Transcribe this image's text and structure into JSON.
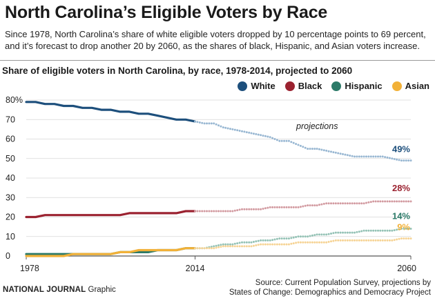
{
  "header": {
    "title": "North Carolina’s Eligible Voters by Race",
    "subtitle": "Since 1978, North Carolina’s share of white eligible voters dropped by 10 percentage points to 69 percent, and it’s forecast to drop another 20 by 2060, as the shares of black, Hispanic, and Asian voters increase."
  },
  "footer": {
    "brand": "NATIONAL JOURNAL",
    "brand_suffix": "Graphic",
    "source_line1": "Source: Current Population Survey, projections by",
    "source_line2": "States of Change: Demographics and Democracy Project"
  },
  "chart_data": {
    "type": "line",
    "title": "Share of eligible voters in North Carolina, by race, 1978-2014, projected to 2060",
    "xlim": [
      1978,
      2060
    ],
    "ylim": [
      0,
      80
    ],
    "x_ticks": [
      1978,
      2014,
      2060
    ],
    "y_ticks": [
      0,
      10,
      20,
      30,
      40,
      50,
      60,
      70,
      80
    ],
    "y_tick_labels": [
      "0",
      "10",
      "20",
      "30",
      "40",
      "50",
      "60",
      "70",
      "80%"
    ],
    "grid": "horizontal",
    "legend_position": "top-right",
    "projection_start": 2014,
    "annotation": "projections",
    "series": [
      {
        "name": "White",
        "color": "#1d4f7c",
        "projection_color": "#98b7d2",
        "end_label": "49%",
        "actual": [
          [
            1978,
            79
          ],
          [
            1980,
            79
          ],
          [
            1982,
            78
          ],
          [
            1984,
            78
          ],
          [
            1986,
            77
          ],
          [
            1988,
            77
          ],
          [
            1990,
            76
          ],
          [
            1992,
            76
          ],
          [
            1994,
            75
          ],
          [
            1996,
            75
          ],
          [
            1998,
            74
          ],
          [
            2000,
            74
          ],
          [
            2002,
            73
          ],
          [
            2004,
            73
          ],
          [
            2006,
            72
          ],
          [
            2008,
            71
          ],
          [
            2010,
            70
          ],
          [
            2012,
            70
          ],
          [
            2014,
            69
          ]
        ],
        "projected": [
          [
            2014,
            69
          ],
          [
            2016,
            68
          ],
          [
            2018,
            68
          ],
          [
            2020,
            66
          ],
          [
            2022,
            65
          ],
          [
            2024,
            64
          ],
          [
            2026,
            63
          ],
          [
            2028,
            62
          ],
          [
            2030,
            61
          ],
          [
            2032,
            59
          ],
          [
            2034,
            59
          ],
          [
            2036,
            57
          ],
          [
            2038,
            55
          ],
          [
            2040,
            55
          ],
          [
            2042,
            54
          ],
          [
            2044,
            53
          ],
          [
            2046,
            52
          ],
          [
            2048,
            51
          ],
          [
            2050,
            51
          ],
          [
            2052,
            51
          ],
          [
            2054,
            51
          ],
          [
            2056,
            50
          ],
          [
            2058,
            49
          ],
          [
            2060,
            49
          ]
        ]
      },
      {
        "name": "Black",
        "color": "#9b2230",
        "projection_color": "#d29aa0",
        "end_label": "28%",
        "actual": [
          [
            1978,
            20
          ],
          [
            1980,
            20
          ],
          [
            1982,
            21
          ],
          [
            1984,
            21
          ],
          [
            1986,
            21
          ],
          [
            1988,
            21
          ],
          [
            1990,
            21
          ],
          [
            1992,
            21
          ],
          [
            1994,
            21
          ],
          [
            1996,
            21
          ],
          [
            1998,
            21
          ],
          [
            2000,
            22
          ],
          [
            2002,
            22
          ],
          [
            2004,
            22
          ],
          [
            2006,
            22
          ],
          [
            2008,
            22
          ],
          [
            2010,
            22
          ],
          [
            2012,
            23
          ],
          [
            2014,
            23
          ]
        ],
        "projected": [
          [
            2014,
            23
          ],
          [
            2016,
            23
          ],
          [
            2018,
            23
          ],
          [
            2020,
            23
          ],
          [
            2022,
            23
          ],
          [
            2024,
            24
          ],
          [
            2026,
            24
          ],
          [
            2028,
            24
          ],
          [
            2030,
            25
          ],
          [
            2032,
            25
          ],
          [
            2034,
            25
          ],
          [
            2036,
            25
          ],
          [
            2038,
            26
          ],
          [
            2040,
            26
          ],
          [
            2042,
            27
          ],
          [
            2044,
            27
          ],
          [
            2046,
            27
          ],
          [
            2048,
            27
          ],
          [
            2050,
            27
          ],
          [
            2052,
            28
          ],
          [
            2054,
            28
          ],
          [
            2056,
            28
          ],
          [
            2058,
            28
          ],
          [
            2060,
            28
          ]
        ]
      },
      {
        "name": "Hispanic",
        "color": "#2c7a68",
        "projection_color": "#94c2b5",
        "end_label": "14%",
        "actual": [
          [
            1978,
            1
          ],
          [
            1980,
            1
          ],
          [
            1982,
            1
          ],
          [
            1984,
            1
          ],
          [
            1986,
            1
          ],
          [
            1988,
            1
          ],
          [
            1990,
            1
          ],
          [
            1992,
            1
          ],
          [
            1994,
            1
          ],
          [
            1996,
            1
          ],
          [
            1998,
            2
          ],
          [
            2000,
            2
          ],
          [
            2002,
            2
          ],
          [
            2004,
            2
          ],
          [
            2006,
            3
          ],
          [
            2008,
            3
          ],
          [
            2010,
            3
          ],
          [
            2012,
            4
          ],
          [
            2014,
            4
          ]
        ],
        "projected": [
          [
            2014,
            4
          ],
          [
            2016,
            4
          ],
          [
            2018,
            5
          ],
          [
            2020,
            6
          ],
          [
            2022,
            6
          ],
          [
            2024,
            7
          ],
          [
            2026,
            7
          ],
          [
            2028,
            8
          ],
          [
            2030,
            8
          ],
          [
            2032,
            9
          ],
          [
            2034,
            9
          ],
          [
            2036,
            10
          ],
          [
            2038,
            10
          ],
          [
            2040,
            11
          ],
          [
            2042,
            11
          ],
          [
            2044,
            12
          ],
          [
            2046,
            12
          ],
          [
            2048,
            12
          ],
          [
            2050,
            13
          ],
          [
            2052,
            13
          ],
          [
            2054,
            13
          ],
          [
            2056,
            13
          ],
          [
            2058,
            14
          ],
          [
            2060,
            14
          ]
        ]
      },
      {
        "name": "Asian",
        "color": "#f2b138",
        "projection_color": "#f6d394",
        "end_label": "9%",
        "actual": [
          [
            1978,
            0
          ],
          [
            1980,
            0
          ],
          [
            1982,
            0
          ],
          [
            1984,
            0
          ],
          [
            1986,
            0
          ],
          [
            1988,
            1
          ],
          [
            1990,
            1
          ],
          [
            1992,
            1
          ],
          [
            1994,
            1
          ],
          [
            1996,
            1
          ],
          [
            1998,
            2
          ],
          [
            2000,
            2
          ],
          [
            2002,
            3
          ],
          [
            2004,
            3
          ],
          [
            2006,
            3
          ],
          [
            2008,
            3
          ],
          [
            2010,
            3
          ],
          [
            2012,
            4
          ],
          [
            2014,
            4
          ]
        ],
        "projected": [
          [
            2014,
            4
          ],
          [
            2016,
            4
          ],
          [
            2018,
            4
          ],
          [
            2020,
            5
          ],
          [
            2022,
            5
          ],
          [
            2024,
            5
          ],
          [
            2026,
            5
          ],
          [
            2028,
            6
          ],
          [
            2030,
            6
          ],
          [
            2032,
            6
          ],
          [
            2034,
            6
          ],
          [
            2036,
            7
          ],
          [
            2038,
            7
          ],
          [
            2040,
            7
          ],
          [
            2042,
            7
          ],
          [
            2044,
            8
          ],
          [
            2046,
            8
          ],
          [
            2048,
            8
          ],
          [
            2050,
            8
          ],
          [
            2052,
            8
          ],
          [
            2054,
            8
          ],
          [
            2056,
            8
          ],
          [
            2058,
            9
          ],
          [
            2060,
            9
          ]
        ]
      }
    ]
  }
}
